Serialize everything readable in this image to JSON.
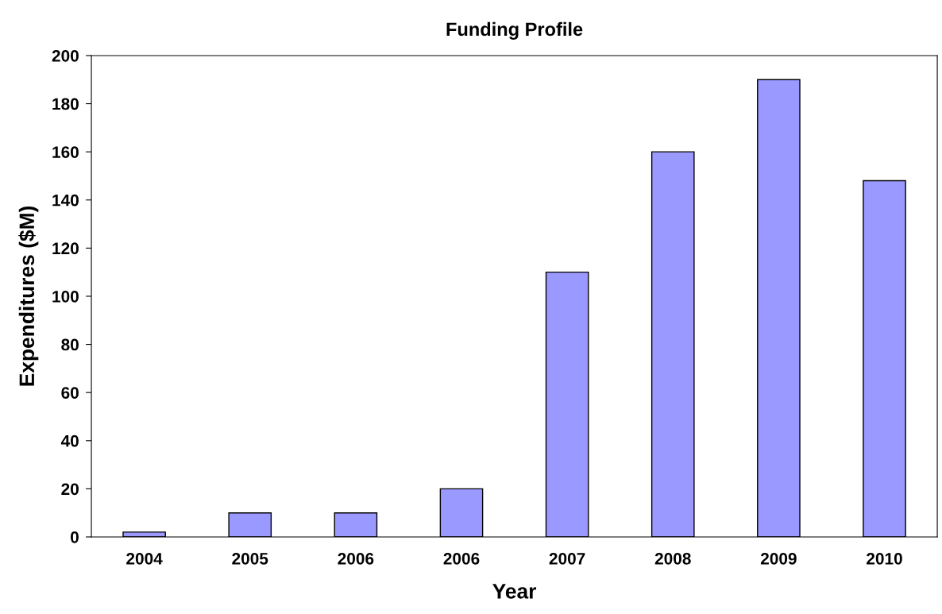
{
  "chart_data": {
    "type": "bar",
    "title": "Funding Profile",
    "xlabel": "Year",
    "ylabel": "Expenditures ($M)",
    "categories": [
      "2004",
      "2005",
      "2006",
      "2006",
      "2007",
      "2008",
      "2009",
      "2010"
    ],
    "values": [
      2,
      10,
      10,
      20,
      110,
      160,
      190,
      148
    ],
    "color": "#9999ff",
    "ylim": [
      0,
      200
    ],
    "yticks": [
      0,
      20,
      40,
      60,
      80,
      100,
      120,
      140,
      160,
      180,
      200
    ],
    "grid": false,
    "legend": false
  }
}
